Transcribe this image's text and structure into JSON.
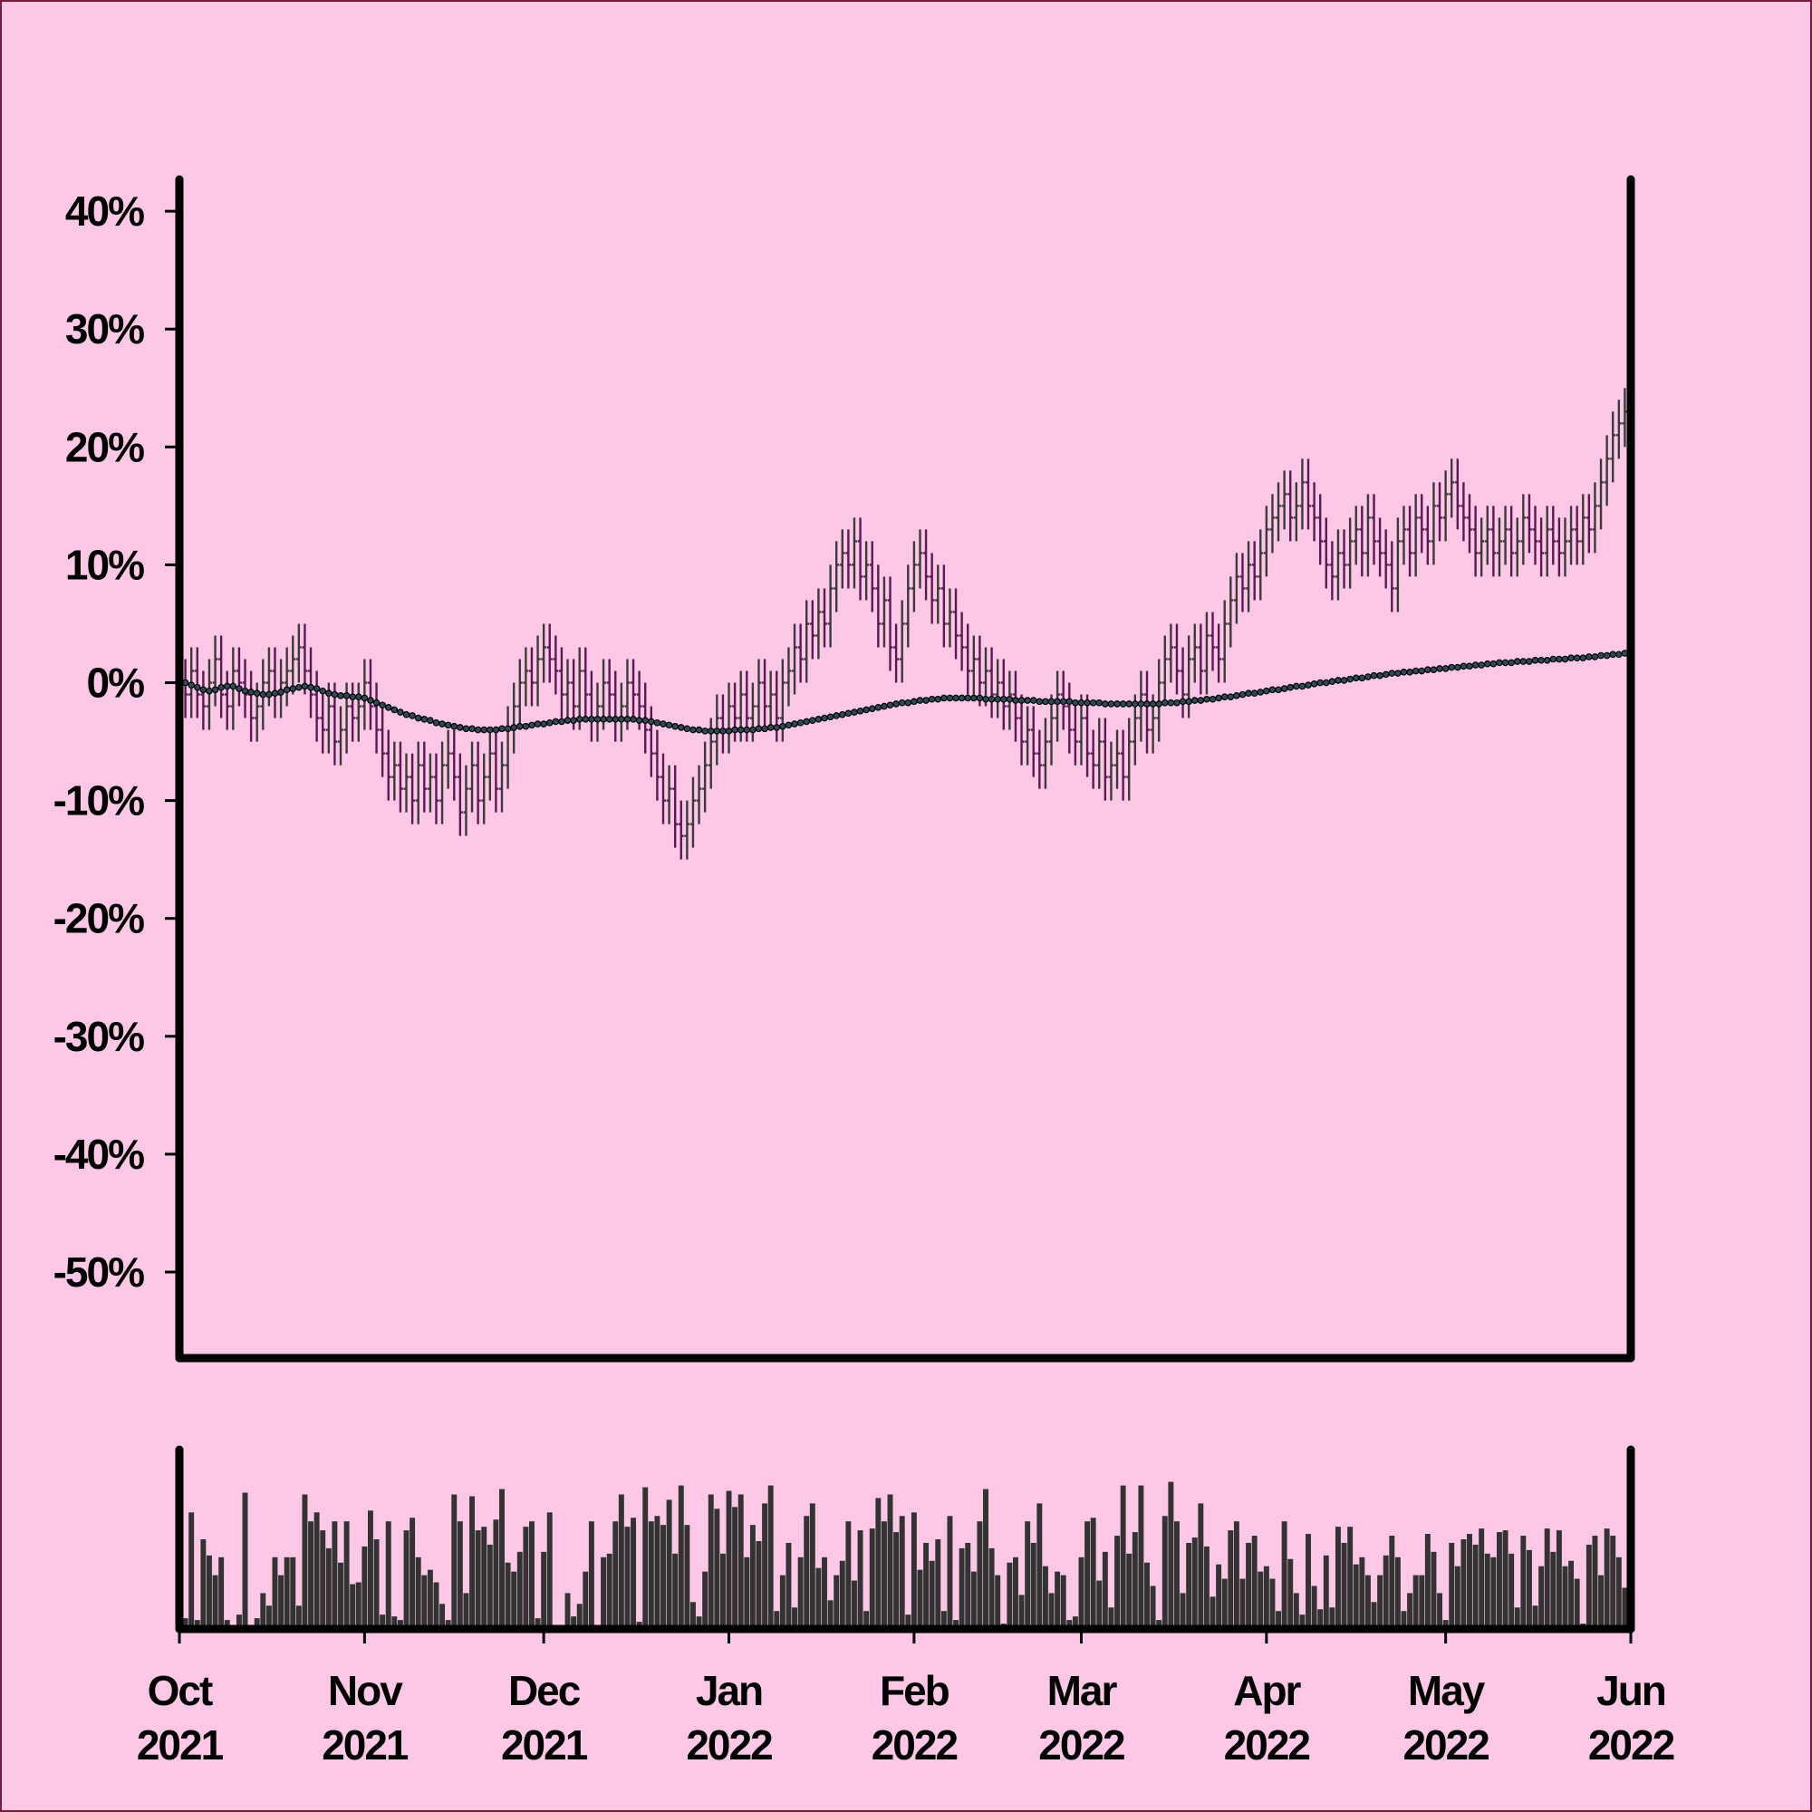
{
  "chart_data": {
    "type": "ohlc",
    "xlim": [
      0,
      243
    ],
    "xticks": [
      {
        "value": 0,
        "label": "Oct\n2021"
      },
      {
        "value": 31,
        "label": "Nov\n2021"
      },
      {
        "value": 61,
        "label": "Dec\n2021"
      },
      {
        "value": 92,
        "label": "Jan\n2022"
      },
      {
        "value": 123,
        "label": "Feb\n2022"
      },
      {
        "value": 151,
        "label": "Mar\n2022"
      },
      {
        "value": 182,
        "label": "Apr\n2022"
      },
      {
        "value": 212,
        "label": "May\n2022"
      },
      {
        "value": 243,
        "label": "Jun\n2022"
      }
    ],
    "ylim": [
      -57.3,
      42.7
    ],
    "yticks": [
      {
        "value": -50,
        "label": "-50%"
      },
      {
        "value": -40,
        "label": "-40%"
      },
      {
        "value": -30,
        "label": "-30%"
      },
      {
        "value": -20,
        "label": "-20%"
      },
      {
        "value": -10,
        "label": "-10%"
      },
      {
        "value": 0,
        "label": "0%"
      },
      {
        "value": 10,
        "label": "10%"
      },
      {
        "value": 20,
        "label": "20%"
      },
      {
        "value": 30,
        "label": "30%"
      },
      {
        "value": 40,
        "label": "40%"
      }
    ],
    "volume_ylim": [
      0,
      100
    ],
    "up_color": "#3b3b3b",
    "down_color": "#5c1a55",
    "ma_color": "#2e4a57",
    "volume_color": "#333333",
    "x": [
      0,
      1,
      2,
      3,
      4,
      5,
      6,
      7,
      8,
      9,
      10,
      11,
      12,
      13,
      14,
      15,
      16,
      17,
      18,
      19,
      20,
      21,
      22,
      23,
      24,
      25,
      26,
      27,
      28,
      29,
      30,
      31,
      32,
      33,
      34,
      35,
      36,
      37,
      38,
      39,
      40,
      41,
      42,
      43,
      44,
      45,
      46,
      47,
      48,
      49,
      50,
      51,
      52,
      53,
      54,
      55,
      56,
      57,
      58,
      59,
      60,
      61,
      62,
      63,
      64,
      65,
      66,
      67,
      68,
      69,
      70,
      71,
      72,
      73,
      74,
      75,
      76,
      77,
      78,
      79,
      80,
      81,
      82,
      83,
      84,
      85,
      86,
      87,
      88,
      89,
      90,
      91,
      92,
      93,
      94,
      95,
      96,
      97,
      98,
      99,
      100,
      101,
      102,
      103,
      104,
      105,
      106,
      107,
      108,
      109,
      110,
      111,
      112,
      113,
      114,
      115,
      116,
      117,
      118,
      119,
      120,
      121,
      122,
      123,
      124,
      125,
      126,
      127,
      128,
      129,
      130,
      131,
      132,
      133,
      134,
      135,
      136,
      137,
      138,
      139,
      140,
      141,
      142,
      143,
      144,
      145,
      146,
      147,
      148,
      149,
      150,
      151,
      152,
      153,
      154,
      155,
      156,
      157,
      158,
      159,
      160,
      161,
      162,
      163,
      164,
      165,
      166,
      167,
      168,
      169,
      170,
      171,
      172,
      173,
      174,
      175,
      176,
      177,
      178,
      179,
      180,
      181,
      182,
      183,
      184,
      185,
      186,
      187,
      188,
      189,
      190,
      191,
      192,
      193,
      194,
      195,
      196,
      197,
      198,
      199,
      200,
      201,
      202,
      203,
      204,
      205,
      206,
      207,
      208,
      209,
      210,
      211,
      212,
      213,
      214,
      215,
      216,
      217,
      218,
      219,
      220,
      221,
      222,
      223,
      224,
      225,
      226,
      227,
      228,
      229,
      230,
      231,
      232,
      233,
      234,
      235,
      236,
      237,
      238,
      239,
      240,
      241,
      242
    ],
    "open": [
      0,
      0,
      -1,
      1,
      -1,
      -2,
      0,
      2,
      -1,
      -2,
      1,
      0,
      -1,
      -3,
      -2,
      0,
      1,
      -1,
      0,
      1,
      2,
      3,
      1,
      -1,
      -3,
      -4,
      -2,
      -5,
      -4,
      -2,
      -3,
      -2,
      0,
      -2,
      -4,
      -6,
      -8,
      -7,
      -9,
      -8,
      -10,
      -7,
      -9,
      -8,
      -10,
      -7,
      -6,
      -8,
      -11,
      -9,
      -7,
      -10,
      -8,
      -6,
      -9,
      -7,
      -4,
      -2,
      0,
      1,
      0,
      2,
      3,
      2,
      1,
      -1,
      0,
      -2,
      1,
      -1,
      -3,
      -2,
      0,
      -1,
      -3,
      -2,
      0,
      -1,
      -2,
      -4,
      -6,
      -8,
      -10,
      -9,
      -12,
      -13,
      -12,
      -10,
      -9,
      -7,
      -5,
      -3,
      -4,
      -2,
      -3,
      -1,
      -3,
      -2,
      0,
      -2,
      -1,
      -3,
      0,
      1,
      3,
      2,
      5,
      4,
      6,
      5,
      8,
      10,
      11,
      10,
      12,
      9,
      10,
      8,
      5,
      7,
      3,
      2,
      5,
      8,
      10,
      11,
      9,
      7,
      8,
      5,
      6,
      4,
      3,
      1,
      2,
      0,
      1,
      -1,
      0,
      -2,
      -1,
      -3,
      -5,
      -4,
      -6,
      -7,
      -5,
      -3,
      -1,
      -2,
      -4,
      -5,
      -3,
      -6,
      -7,
      -5,
      -8,
      -7,
      -6,
      -8,
      -5,
      -3,
      -1,
      -4,
      -3,
      0,
      2,
      3,
      1,
      -1,
      2,
      3,
      1,
      4,
      3,
      2,
      5,
      7,
      9,
      8,
      10,
      9,
      11,
      13,
      14,
      15,
      16,
      14,
      15,
      17,
      15,
      14,
      12,
      10,
      9,
      11,
      10,
      12,
      13,
      11,
      14,
      12,
      11,
      10,
      8,
      12,
      13,
      11,
      14,
      13,
      12,
      15,
      14,
      16,
      17,
      15,
      14,
      13,
      11,
      12,
      13,
      11,
      12,
      13,
      11,
      12,
      14,
      13,
      12,
      11,
      13,
      12,
      11,
      12,
      13,
      12,
      14,
      13,
      15,
      17,
      19,
      21,
      22
    ],
    "high": [
      2,
      2,
      3,
      3,
      1,
      2,
      4,
      4,
      1,
      3,
      3,
      2,
      1,
      0,
      2,
      3,
      3,
      2,
      3,
      4,
      5,
      5,
      3,
      1,
      -1,
      0,
      0,
      -2,
      0,
      0,
      0,
      2,
      2,
      0,
      -2,
      -4,
      -5,
      -5,
      -6,
      -6,
      -5,
      -5,
      -6,
      -6,
      -5,
      -4,
      -4,
      -6,
      -7,
      -5,
      -5,
      -6,
      -4,
      -4,
      -5,
      -2,
      0,
      2,
      3,
      3,
      4,
      5,
      5,
      4,
      3,
      2,
      2,
      3,
      3,
      1,
      0,
      2,
      2,
      1,
      0,
      2,
      2,
      1,
      0,
      -2,
      -4,
      -6,
      -7,
      -7,
      -10,
      -10,
      -8,
      -7,
      -5,
      -3,
      -1,
      -1,
      0,
      0,
      1,
      1,
      0,
      2,
      2,
      1,
      1,
      2,
      3,
      5,
      5,
      7,
      7,
      8,
      8,
      10,
      12,
      13,
      13,
      14,
      14,
      12,
      12,
      10,
      9,
      9,
      5,
      7,
      10,
      12,
      13,
      13,
      11,
      10,
      10,
      8,
      8,
      6,
      5,
      4,
      4,
      3,
      3,
      2,
      2,
      1,
      1,
      -1,
      -2,
      -2,
      -4,
      -3,
      -1,
      1,
      1,
      0,
      -2,
      -1,
      -1,
      -4,
      -3,
      -3,
      -5,
      -4,
      -4,
      -3,
      -1,
      1,
      1,
      -1,
      2,
      4,
      5,
      5,
      3,
      4,
      5,
      5,
      6,
      6,
      5,
      7,
      9,
      11,
      11,
      12,
      12,
      13,
      15,
      16,
      17,
      18,
      18,
      17,
      19,
      19,
      17,
      16,
      14,
      12,
      13,
      13,
      14,
      15,
      15,
      16,
      16,
      14,
      13,
      12,
      14,
      15,
      15,
      16,
      16,
      15,
      17,
      17,
      18,
      19,
      19,
      17,
      16,
      15,
      14,
      15,
      15,
      14,
      15,
      15,
      14,
      16,
      16,
      15,
      14,
      15,
      15,
      14,
      14,
      15,
      15,
      16,
      16,
      17,
      19,
      21,
      23,
      24,
      25
    ],
    "low": [
      -2,
      -3,
      -3,
      -3,
      -4,
      -4,
      -2,
      -3,
      -4,
      -4,
      -2,
      -3,
      -5,
      -5,
      -4,
      -2,
      -3,
      -3,
      -2,
      -1,
      0,
      -1,
      -3,
      -5,
      -6,
      -6,
      -7,
      -7,
      -6,
      -5,
      -5,
      -4,
      -4,
      -6,
      -8,
      -10,
      -10,
      -11,
      -11,
      -12,
      -12,
      -11,
      -11,
      -12,
      -12,
      -9,
      -10,
      -13,
      -13,
      -11,
      -12,
      -12,
      -10,
      -11,
      -11,
      -9,
      -6,
      -4,
      -2,
      -2,
      -2,
      0,
      0,
      -1,
      -3,
      -3,
      -4,
      -4,
      -3,
      -5,
      -5,
      -4,
      -3,
      -5,
      -5,
      -4,
      -3,
      -4,
      -6,
      -8,
      -10,
      -12,
      -12,
      -14,
      -15,
      -15,
      -14,
      -12,
      -11,
      -9,
      -7,
      -6,
      -6,
      -5,
      -5,
      -5,
      -5,
      -4,
      -4,
      -4,
      -5,
      -5,
      -2,
      -1,
      0,
      0,
      2,
      2,
      3,
      3,
      6,
      8,
      8,
      8,
      7,
      7,
      6,
      3,
      3,
      1,
      0,
      0,
      3,
      6,
      8,
      7,
      5,
      5,
      3,
      3,
      2,
      1,
      -1,
      -1,
      -2,
      -2,
      -3,
      -3,
      -4,
      -4,
      -5,
      -7,
      -7,
      -8,
      -9,
      -9,
      -7,
      -5,
      -4,
      -6,
      -7,
      -7,
      -8,
      -9,
      -9,
      -10,
      -10,
      -9,
      -10,
      -10,
      -7,
      -5,
      -6,
      -6,
      -5,
      -2,
      0,
      -1,
      -3,
      -3,
      0,
      -1,
      -1,
      1,
      0,
      0,
      3,
      5,
      6,
      6,
      7,
      7,
      9,
      11,
      12,
      13,
      12,
      12,
      13,
      13,
      12,
      10,
      8,
      7,
      7,
      8,
      8,
      10,
      9,
      9,
      10,
      9,
      8,
      6,
      6,
      10,
      9,
      9,
      11,
      10,
      10,
      12,
      12,
      14,
      13,
      12,
      11,
      9,
      9,
      10,
      9,
      9,
      10,
      9,
      9,
      10,
      11,
      10,
      9,
      9,
      10,
      9,
      9,
      10,
      10,
      10,
      11,
      11,
      13,
      15,
      17,
      19,
      20
    ],
    "close": [
      0,
      -1,
      1,
      -1,
      -2,
      0,
      2,
      -1,
      -2,
      1,
      0,
      -1,
      -3,
      -2,
      0,
      1,
      -1,
      0,
      1,
      2,
      3,
      1,
      -1,
      -3,
      -4,
      -2,
      -5,
      -4,
      -2,
      -3,
      -2,
      0,
      -2,
      -4,
      -6,
      -8,
      -7,
      -9,
      -8,
      -10,
      -7,
      -9,
      -8,
      -10,
      -7,
      -6,
      -8,
      -11,
      -9,
      -7,
      -10,
      -8,
      -6,
      -9,
      -7,
      -4,
      -2,
      0,
      1,
      0,
      2,
      3,
      2,
      1,
      -1,
      0,
      -2,
      1,
      -1,
      -3,
      -2,
      0,
      -1,
      -3,
      -2,
      0,
      -1,
      -2,
      -4,
      -6,
      -8,
      -10,
      -9,
      -12,
      -13,
      -12,
      -10,
      -9,
      -7,
      -5,
      -3,
      -4,
      -2,
      -3,
      -1,
      -3,
      -2,
      0,
      -2,
      -1,
      -3,
      0,
      1,
      3,
      2,
      5,
      4,
      6,
      5,
      8,
      10,
      11,
      10,
      12,
      9,
      10,
      8,
      5,
      7,
      3,
      2,
      5,
      8,
      10,
      11,
      9,
      7,
      8,
      5,
      6,
      4,
      3,
      1,
      2,
      0,
      1,
      -1,
      0,
      -2,
      -1,
      -3,
      -5,
      -4,
      -6,
      -7,
      -5,
      -3,
      -1,
      -2,
      -4,
      -5,
      -3,
      -6,
      -7,
      -5,
      -8,
      -7,
      -6,
      -8,
      -5,
      -3,
      -1,
      -4,
      -3,
      0,
      2,
      3,
      1,
      -1,
      2,
      3,
      1,
      4,
      3,
      2,
      5,
      7,
      9,
      8,
      10,
      9,
      11,
      13,
      14,
      15,
      16,
      14,
      15,
      17,
      15,
      14,
      12,
      10,
      9,
      11,
      10,
      12,
      13,
      11,
      14,
      12,
      11,
      10,
      8,
      12,
      13,
      11,
      14,
      13,
      12,
      15,
      14,
      16,
      17,
      15,
      14,
      13,
      11,
      12,
      13,
      11,
      12,
      13,
      11,
      12,
      14,
      13,
      12,
      11,
      13,
      12,
      11,
      12,
      13,
      12,
      14,
      13,
      15,
      17,
      19,
      21,
      22,
      23
    ],
    "ma": [
      0,
      0,
      -0.2,
      -0.4,
      -0.6,
      -0.7,
      -0.6,
      -0.4,
      -0.3,
      -0.3,
      -0.5,
      -0.7,
      -0.8,
      -0.9,
      -1,
      -1,
      -0.9,
      -0.8,
      -0.6,
      -0.5,
      -0.4,
      -0.3,
      -0.4,
      -0.5,
      -0.7,
      -0.9,
      -1,
      -1.1,
      -1.1,
      -1.2,
      -1.2,
      -1.3,
      -1.5,
      -1.7,
      -1.9,
      -2.1,
      -2.3,
      -2.5,
      -2.7,
      -2.8,
      -3,
      -3.1,
      -3.2,
      -3.4,
      -3.5,
      -3.6,
      -3.7,
      -3.8,
      -3.9,
      -3.9,
      -4,
      -4,
      -4,
      -4,
      -3.9,
      -3.9,
      -3.8,
      -3.7,
      -3.7,
      -3.6,
      -3.5,
      -3.5,
      -3.4,
      -3.3,
      -3.3,
      -3.2,
      -3.2,
      -3.1,
      -3.1,
      -3.1,
      -3.1,
      -3.1,
      -3.1,
      -3.1,
      -3.1,
      -3.1,
      -3.1,
      -3.2,
      -3.2,
      -3.3,
      -3.4,
      -3.5,
      -3.6,
      -3.7,
      -3.8,
      -3.9,
      -4,
      -4,
      -4.1,
      -4.1,
      -4.1,
      -4.1,
      -4.1,
      -4,
      -4,
      -4,
      -4,
      -3.9,
      -3.9,
      -3.8,
      -3.8,
      -3.7,
      -3.6,
      -3.5,
      -3.4,
      -3.3,
      -3.2,
      -3.1,
      -3,
      -2.9,
      -2.8,
      -2.7,
      -2.6,
      -2.5,
      -2.4,
      -2.3,
      -2.2,
      -2.1,
      -2,
      -1.9,
      -1.8,
      -1.7,
      -1.7,
      -1.6,
      -1.5,
      -1.5,
      -1.4,
      -1.4,
      -1.3,
      -1.3,
      -1.3,
      -1.3,
      -1.3,
      -1.3,
      -1.3,
      -1.4,
      -1.4,
      -1.4,
      -1.4,
      -1.4,
      -1.5,
      -1.5,
      -1.5,
      -1.5,
      -1.6,
      -1.6,
      -1.6,
      -1.6,
      -1.6,
      -1.6,
      -1.7,
      -1.7,
      -1.7,
      -1.7,
      -1.7,
      -1.8,
      -1.8,
      -1.8,
      -1.8,
      -1.8,
      -1.8,
      -1.8,
      -1.8,
      -1.8,
      -1.8,
      -1.7,
      -1.7,
      -1.7,
      -1.6,
      -1.6,
      -1.5,
      -1.5,
      -1.4,
      -1.4,
      -1.3,
      -1.2,
      -1.2,
      -1.1,
      -1,
      -0.9,
      -0.9,
      -0.8,
      -0.7,
      -0.6,
      -0.6,
      -0.5,
      -0.4,
      -0.3,
      -0.3,
      -0.2,
      -0.1,
      0,
      0,
      0.1,
      0.2,
      0.2,
      0.3,
      0.4,
      0.4,
      0.5,
      0.6,
      0.6,
      0.7,
      0.8,
      0.8,
      0.9,
      0.9,
      1,
      1,
      1.1,
      1.1,
      1.2,
      1.2,
      1.3,
      1.3,
      1.4,
      1.4,
      1.5,
      1.5,
      1.6,
      1.6,
      1.7,
      1.7,
      1.7,
      1.8,
      1.8,
      1.8,
      1.9,
      1.9,
      1.9,
      2,
      2,
      2,
      2.1,
      2.1,
      2.1,
      2.2,
      2.2,
      2.3,
      2.3,
      2.4,
      2.4,
      2.5
    ],
    "volume": [
      68,
      6,
      65,
      5,
      50,
      41,
      30,
      40,
      5,
      1,
      8,
      76,
      1,
      6,
      20,
      13,
      40,
      30,
      40,
      40,
      13,
      75,
      60,
      65,
      55,
      45,
      60,
      37,
      60,
      25,
      26,
      46,
      66,
      50,
      8,
      60,
      7,
      5,
      55,
      62,
      40,
      30,
      33,
      26,
      14,
      5,
      75,
      60,
      20,
      74,
      55,
      57,
      47,
      61,
      78,
      37,
      32,
      43,
      57,
      60,
      6,
      43,
      65,
      2,
      2,
      20,
      7,
      14,
      32,
      60,
      2,
      40,
      42,
      60,
      75,
      57,
      62,
      4,
      79,
      60,
      63,
      58,
      72,
      42,
      80,
      58,
      15,
      7,
      32,
      75,
      67,
      42,
      77,
      68,
      75,
      40,
      58,
      49,
      70,
      80,
      10,
      30,
      48,
      12,
      40,
      63,
      70,
      34,
      40,
      16,
      30,
      38,
      60,
      27,
      55,
      10,
      56,
      73,
      60,
      75,
      54,
      63,
      8,
      65,
      33,
      48,
      38,
      50,
      10,
      63,
      5,
      45,
      48,
      32,
      60,
      78,
      45,
      30,
      3,
      37,
      40,
      19,
      60,
      48,
      70,
      35,
      20,
      32,
      30,
      5,
      7,
      40,
      60,
      62,
      27,
      43,
      12,
      52,
      80,
      42,
      54,
      80,
      37,
      24,
      5,
      63,
      82,
      60,
      20,
      48,
      51,
      70,
      46,
      18,
      36,
      28,
      55,
      60,
      28,
      48,
      52,
      32,
      35,
      28,
      10,
      60,
      39,
      20,
      8,
      53,
      24,
      11,
      41,
      12,
      57,
      48,
      57,
      36,
      40,
      30,
      15,
      30,
      41,
      52,
      40,
      10,
      20,
      30,
      30,
      53,
      43,
      20,
      5,
      48,
      35,
      50,
      53,
      47,
      56,
      42,
      40,
      54,
      55,
      42,
      12,
      52,
      44,
      13,
      35,
      56,
      43,
      55,
      35,
      38,
      28,
      3,
      47,
      52,
      30,
      56,
      52,
      40,
      23
    ]
  }
}
